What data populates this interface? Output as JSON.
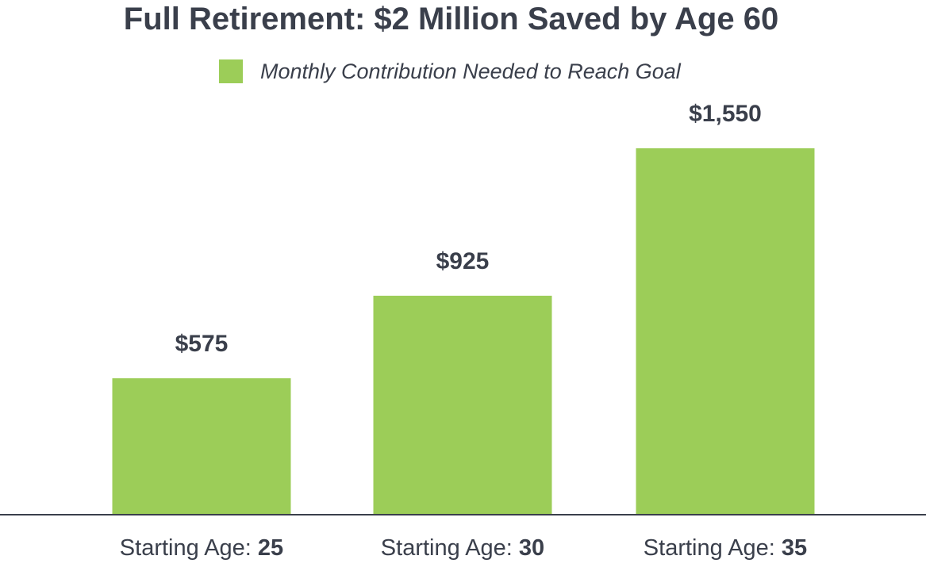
{
  "title": "Full Retirement: $2 Million Saved by Age 60",
  "colors": {
    "bar": "#9ccd58",
    "text": "#3a3f4b",
    "axis": "#3a3f4b"
  },
  "chart_data": {
    "type": "bar",
    "title": "Full Retirement: $2 Million Saved by Age 60",
    "xlabel": "",
    "ylabel": "",
    "categories": [
      "Starting Age: 25",
      "Starting Age: 30",
      "Starting Age: 35"
    ],
    "category_parts": [
      {
        "prefix": "Starting Age: ",
        "value": "25"
      },
      {
        "prefix": "Starting Age: ",
        "value": "30"
      },
      {
        "prefix": "Starting Age: ",
        "value": "35"
      }
    ],
    "series": [
      {
        "name": "Monthly Contribution Needed to Reach Goal",
        "values": [
          575,
          925,
          1550
        ],
        "labels": [
          "$575",
          "$925",
          "$1,550"
        ]
      }
    ],
    "ylim": [
      0,
      1550
    ],
    "grid": false,
    "legend_position": "top-center"
  }
}
